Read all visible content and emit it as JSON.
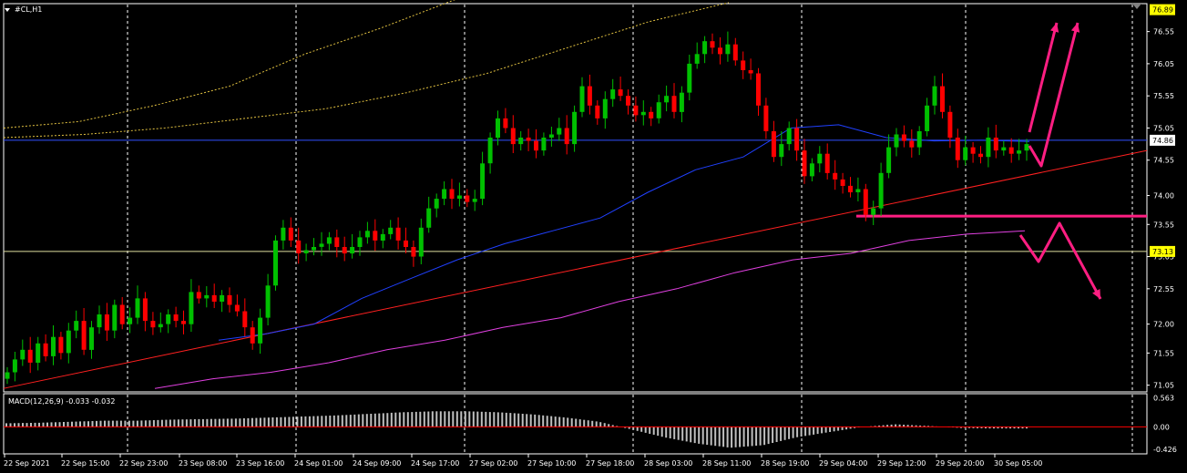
{
  "symbol_label": "#CL,H1",
  "macd_label": "MACD(12,26,9) -0.033 -0.032",
  "colors": {
    "background": "#000000",
    "grid": "#ffffff",
    "bull_candle": "#00c000",
    "bear_candle": "#ff0000",
    "ma_fast": "#2040ff",
    "ma_slow": "#e040e0",
    "ma_long": "#e0c040",
    "trendline": "#ff2020",
    "arrows": "#ff1e82",
    "macd_hist": "#c0c0c0",
    "macd_signal": "#ff0000",
    "axis_text": "#ffffff"
  },
  "chart_data": {
    "type": "candlestick",
    "title": "#CL,H1",
    "price_axis": {
      "ylim": [
        70.96,
        76.97
      ],
      "ticks": [
        "76.55",
        "76.05",
        "75.55",
        "75.05",
        "74.55",
        "74.00",
        "73.55",
        "73.05",
        "72.55",
        "72.00",
        "71.55",
        "71.05"
      ],
      "current_price": "74.86",
      "level_label": "73.13",
      "top_label": "76.89"
    },
    "time_axis": {
      "labels": [
        "22 Sep 2021",
        "22 Sep 15:00",
        "22 Sep 23:00",
        "23 Sep 08:00",
        "23 Sep 16:00",
        "24 Sep 01:00",
        "24 Sep 09:00",
        "24 Sep 17:00",
        "27 Sep 02:00",
        "27 Sep 10:00",
        "27 Sep 18:00",
        "28 Sep 03:00",
        "28 Sep 11:00",
        "28 Sep 19:00",
        "29 Sep 04:00",
        "29 Sep 12:00",
        "29 Sep 20:00",
        "30 Sep 05:00"
      ]
    },
    "macd_axis": {
      "ylim": [
        -0.5,
        0.62
      ],
      "ticks": [
        "0.563",
        "0.00",
        "-0.426"
      ],
      "indicator": "MACD(12,26,9)",
      "main": -0.033,
      "signal": -0.032
    },
    "candles_close": [
      71.25,
      71.45,
      71.6,
      71.4,
      71.7,
      71.5,
      71.8,
      71.55,
      71.9,
      72.05,
      71.6,
      71.95,
      72.15,
      71.9,
      72.3,
      72.0,
      72.1,
      72.4,
      72.05,
      71.95,
      72.0,
      72.15,
      72.05,
      72.0,
      72.5,
      72.4,
      72.45,
      72.35,
      72.45,
      72.3,
      72.2,
      71.95,
      71.7,
      72.1,
      72.6,
      73.3,
      73.5,
      73.3,
      73.1,
      73.15,
      73.2,
      73.25,
      73.35,
      73.2,
      73.1,
      73.2,
      73.35,
      73.45,
      73.3,
      73.4,
      73.5,
      73.3,
      73.2,
      73.05,
      73.5,
      73.8,
      73.95,
      74.1,
      73.95,
      74.0,
      73.9,
      73.95,
      74.5,
      74.9,
      75.2,
      75.05,
      74.8,
      74.9,
      74.85,
      74.7,
      74.9,
      74.95,
      75.05,
      74.8,
      75.3,
      75.7,
      75.4,
      75.2,
      75.5,
      75.65,
      75.55,
      75.4,
      75.25,
      75.3,
      75.2,
      75.45,
      75.55,
      75.3,
      75.6,
      76.05,
      76.2,
      76.4,
      76.3,
      76.2,
      76.35,
      76.1,
      75.95,
      75.9,
      75.4,
      75.0,
      74.6,
      74.8,
      75.05,
      74.7,
      74.3,
      74.5,
      74.65,
      74.35,
      74.25,
      74.15,
      74.05,
      74.1,
      73.7,
      73.8,
      74.35,
      74.75,
      74.95,
      74.85,
      74.75,
      75.0,
      75.4,
      75.7,
      75.3,
      74.9,
      74.55,
      74.75,
      74.65,
      74.6,
      74.9,
      74.7,
      74.75,
      74.65,
      74.7,
      74.8
    ],
    "indicators": [
      {
        "name": "MA fast",
        "values": [
          71.75,
          71.85,
          72.0,
          72.4,
          72.7,
          73.0,
          73.25,
          73.45,
          73.65,
          74.05,
          74.4,
          74.6,
          75.05,
          75.1,
          74.9,
          74.85,
          74.86,
          74.84
        ]
      },
      {
        "name": "MA slow",
        "values": [
          71.0,
          71.15,
          71.25,
          71.4,
          71.6,
          71.75,
          71.95,
          72.1,
          72.35,
          72.55,
          72.8,
          73.0,
          73.1,
          73.3,
          73.4,
          73.45
        ]
      },
      {
        "name": "Trendline",
        "values": [
          71.0,
          74.7
        ]
      }
    ],
    "macd_hist": [
      0.07,
      0.08,
      0.1,
      0.12,
      0.12,
      0.14,
      0.15,
      0.16,
      0.18,
      0.2,
      0.22,
      0.25,
      0.28,
      0.3,
      0.3,
      0.28,
      0.24,
      0.18,
      0.1,
      -0.05,
      -0.2,
      -0.32,
      -0.4,
      -0.35,
      -0.2,
      -0.1,
      0.0,
      0.05,
      0.02,
      -0.02,
      -0.03,
      -0.03
    ]
  }
}
